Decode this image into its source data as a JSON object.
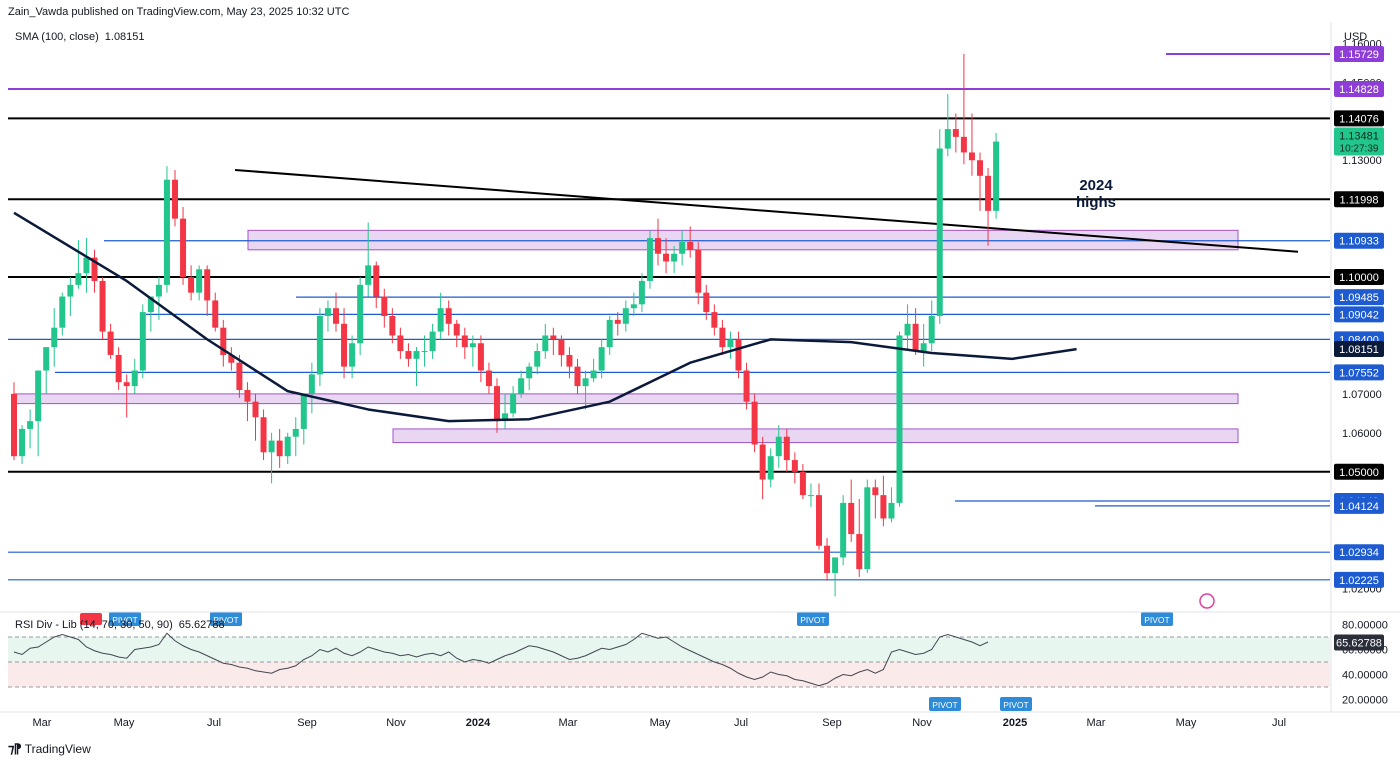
{
  "header": {
    "publisher": "Zain_Vawda published on TradingView.com, May 23, 2025 10:32 UTC",
    "sma_label": "SMA (100, close)",
    "sma_value": "1.08151",
    "currency": "USD"
  },
  "rsi_panel": {
    "label": "RSI Div - Lib (14, 70, 30, 50, 90)",
    "value": "65.62788",
    "pivot_label": "PIVOT",
    "ticks": [
      "80.00000",
      "60.00000",
      "40.00000",
      "20.00000"
    ],
    "badge": "65.62788"
  },
  "annotation": "2024\nhighs",
  "footer": {
    "brand": "TradingView"
  },
  "colors": {
    "bull": "#22c58b",
    "bear": "#f23645",
    "sma": "#0b1a3a",
    "support_black": "#000000",
    "level_blue": "#1e5bd0",
    "level_purple": "#8e3ed6",
    "zone_fill": "#e9d6f3",
    "zone_border": "#a254c8",
    "rsi": "#434651"
  },
  "chart_data": {
    "type": "candlestick",
    "timeframe": "weekly",
    "x_ticks": [
      "Mar",
      "May",
      "Jul",
      "Sep",
      "Nov",
      "2024",
      "Mar",
      "May",
      "Jul",
      "Sep",
      "Nov",
      "2025",
      "Mar",
      "May",
      "Jul"
    ],
    "y_ticks": [
      "1.16000",
      "1.15000",
      "1.13000",
      "1.07000",
      "1.06000",
      "1.02000"
    ],
    "ylim": [
      1.0145,
      1.1655
    ],
    "horizontal_levels": [
      {
        "label": "1.15729",
        "value": 1.15729,
        "kind": "purple"
      },
      {
        "label": "1.14828",
        "value": 1.14828,
        "kind": "purple"
      },
      {
        "label": "1.14076",
        "value": 1.14076,
        "kind": "black"
      },
      {
        "label": "1.11998",
        "value": 1.11998,
        "kind": "black"
      },
      {
        "label": "1.10933",
        "value": 1.10933,
        "kind": "blue"
      },
      {
        "label": "1.10000",
        "value": 1.1,
        "kind": "black"
      },
      {
        "label": "1.09485",
        "value": 1.09485,
        "kind": "blue"
      },
      {
        "label": "1.09042",
        "value": 1.09042,
        "kind": "blue"
      },
      {
        "label": "1.08400",
        "value": 1.084,
        "kind": "blue"
      },
      {
        "label": "1.07552",
        "value": 1.07552,
        "kind": "blue"
      },
      {
        "label": "1.05000",
        "value": 1.05,
        "kind": "black"
      },
      {
        "label": "1.04249",
        "value": 1.04249,
        "kind": "blue"
      },
      {
        "label": "1.04124",
        "value": 1.04124,
        "kind": "blue"
      },
      {
        "label": "1.02934",
        "value": 1.02934,
        "kind": "blue"
      },
      {
        "label": "1.02225",
        "value": 1.02225,
        "kind": "blue"
      }
    ],
    "price_badges": [
      {
        "label": "1.13481",
        "sub": "10:27:39",
        "value": 1.1348,
        "kind": "current"
      },
      {
        "label": "1.08151",
        "value": 1.08151,
        "kind": "sma"
      }
    ],
    "zones": [
      {
        "top": 1.112,
        "bottom": 1.107
      },
      {
        "top": 1.07,
        "bottom": 1.0675
      },
      {
        "top": 1.061,
        "bottom": 1.0575
      }
    ],
    "trendline": {
      "from": {
        "bar": 0,
        "price": 1.1275
      },
      "to": {
        "bar": 1,
        "price": 1.1065
      }
    },
    "candles_ohlc": [
      [
        1.07,
        1.073,
        1.053,
        1.054
      ],
      [
        1.054,
        1.062,
        1.052,
        1.061
      ],
      [
        1.061,
        1.066,
        1.056,
        1.063
      ],
      [
        1.063,
        1.072,
        1.054,
        1.076
      ],
      [
        1.076,
        1.082,
        1.07,
        1.082
      ],
      [
        1.082,
        1.092,
        1.077,
        1.087
      ],
      [
        1.087,
        1.096,
        1.085,
        1.095
      ],
      [
        1.095,
        1.1,
        1.09,
        1.098
      ],
      [
        1.098,
        1.1095,
        1.097,
        1.101
      ],
      [
        1.101,
        1.11,
        1.096,
        1.105
      ],
      [
        1.105,
        1.107,
        1.096,
        1.099
      ],
      [
        1.099,
        1.1,
        1.084,
        1.086
      ],
      [
        1.086,
        1.088,
        1.079,
        1.08
      ],
      [
        1.08,
        1.082,
        1.071,
        1.073
      ],
      [
        1.073,
        1.075,
        1.064,
        1.072
      ],
      [
        1.072,
        1.079,
        1.07,
        1.076
      ],
      [
        1.076,
        1.093,
        1.074,
        1.091
      ],
      [
        1.091,
        1.095,
        1.086,
        1.095
      ],
      [
        1.095,
        1.1,
        1.089,
        1.098
      ],
      [
        1.098,
        1.1285,
        1.096,
        1.125
      ],
      [
        1.125,
        1.1275,
        1.113,
        1.115
      ],
      [
        1.115,
        1.118,
        1.098,
        1.1
      ],
      [
        1.1,
        1.103,
        1.094,
        1.096
      ],
      [
        1.096,
        1.103,
        1.094,
        1.102
      ],
      [
        1.102,
        1.103,
        1.09,
        1.094
      ],
      [
        1.094,
        1.096,
        1.086,
        1.087
      ],
      [
        1.087,
        1.089,
        1.077,
        1.08
      ],
      [
        1.08,
        1.082,
        1.076,
        1.078
      ],
      [
        1.078,
        1.08,
        1.069,
        1.071
      ],
      [
        1.071,
        1.073,
        1.063,
        1.068
      ],
      [
        1.068,
        1.07,
        1.058,
        1.064
      ],
      [
        1.064,
        1.066,
        1.053,
        1.055
      ],
      [
        1.055,
        1.06,
        1.047,
        1.058
      ],
      [
        1.058,
        1.061,
        1.051,
        1.054
      ],
      [
        1.054,
        1.06,
        1.052,
        1.059
      ],
      [
        1.059,
        1.064,
        1.054,
        1.061
      ],
      [
        1.061,
        1.07,
        1.057,
        1.07
      ],
      [
        1.07,
        1.078,
        1.065,
        1.075
      ],
      [
        1.075,
        1.092,
        1.072,
        1.09
      ],
      [
        1.09,
        1.094,
        1.086,
        1.092
      ],
      [
        1.092,
        1.096,
        1.086,
        1.088
      ],
      [
        1.088,
        1.092,
        1.074,
        1.077
      ],
      [
        1.077,
        1.085,
        1.074,
        1.083
      ],
      [
        1.083,
        1.1,
        1.08,
        1.098
      ],
      [
        1.098,
        1.114,
        1.095,
        1.103
      ],
      [
        1.103,
        1.104,
        1.092,
        1.095
      ],
      [
        1.095,
        1.097,
        1.087,
        1.09
      ],
      [
        1.09,
        1.092,
        1.083,
        1.085
      ],
      [
        1.085,
        1.087,
        1.079,
        1.081
      ],
      [
        1.081,
        1.083,
        1.077,
        1.079
      ],
      [
        1.079,
        1.082,
        1.072,
        1.081
      ],
      [
        1.081,
        1.085,
        1.077,
        1.081
      ],
      [
        1.081,
        1.088,
        1.079,
        1.086
      ],
      [
        1.086,
        1.096,
        1.084,
        1.092
      ],
      [
        1.092,
        1.094,
        1.085,
        1.088
      ],
      [
        1.088,
        1.089,
        1.082,
        1.085
      ],
      [
        1.085,
        1.087,
        1.079,
        1.082
      ],
      [
        1.082,
        1.085,
        1.077,
        1.083
      ],
      [
        1.083,
        1.085,
        1.073,
        1.076
      ],
      [
        1.076,
        1.078,
        1.07,
        1.072
      ],
      [
        1.072,
        1.074,
        1.06,
        1.063
      ],
      [
        1.063,
        1.07,
        1.061,
        1.065
      ],
      [
        1.065,
        1.072,
        1.064,
        1.07
      ],
      [
        1.07,
        1.076,
        1.069,
        1.074
      ],
      [
        1.074,
        1.078,
        1.071,
        1.077
      ],
      [
        1.077,
        1.083,
        1.075,
        1.081
      ],
      [
        1.081,
        1.088,
        1.079,
        1.085
      ],
      [
        1.085,
        1.087,
        1.08,
        1.084
      ],
      [
        1.084,
        1.085,
        1.077,
        1.08
      ],
      [
        1.08,
        1.082,
        1.074,
        1.077
      ],
      [
        1.077,
        1.079,
        1.07,
        1.072
      ],
      [
        1.072,
        1.076,
        1.066,
        1.074
      ],
      [
        1.074,
        1.079,
        1.073,
        1.076
      ],
      [
        1.076,
        1.084,
        1.074,
        1.082
      ],
      [
        1.082,
        1.09,
        1.08,
        1.089
      ],
      [
        1.089,
        1.091,
        1.085,
        1.088
      ],
      [
        1.088,
        1.094,
        1.086,
        1.092
      ],
      [
        1.092,
        1.096,
        1.09,
        1.093
      ],
      [
        1.093,
        1.101,
        1.091,
        1.099
      ],
      [
        1.099,
        1.112,
        1.097,
        1.11
      ],
      [
        1.11,
        1.115,
        1.103,
        1.106
      ],
      [
        1.106,
        1.11,
        1.101,
        1.104
      ],
      [
        1.104,
        1.108,
        1.101,
        1.106
      ],
      [
        1.106,
        1.112,
        1.103,
        1.109
      ],
      [
        1.109,
        1.113,
        1.105,
        1.107
      ],
      [
        1.107,
        1.109,
        1.093,
        1.096
      ],
      [
        1.096,
        1.098,
        1.089,
        1.091
      ],
      [
        1.091,
        1.093,
        1.085,
        1.087
      ],
      [
        1.087,
        1.089,
        1.08,
        1.082
      ],
      [
        1.082,
        1.086,
        1.079,
        1.084
      ],
      [
        1.084,
        1.086,
        1.074,
        1.076
      ],
      [
        1.076,
        1.078,
        1.066,
        1.068
      ],
      [
        1.068,
        1.07,
        1.055,
        1.057
      ],
      [
        1.057,
        1.059,
        1.043,
        1.048
      ],
      [
        1.048,
        1.056,
        1.046,
        1.054
      ],
      [
        1.054,
        1.062,
        1.051,
        1.059
      ],
      [
        1.059,
        1.061,
        1.05,
        1.053
      ],
      [
        1.053,
        1.055,
        1.047,
        1.05
      ],
      [
        1.05,
        1.052,
        1.043,
        1.044
      ],
      [
        1.044,
        1.047,
        1.041,
        1.044
      ],
      [
        1.044,
        1.047,
        1.03,
        1.031
      ],
      [
        1.031,
        1.033,
        1.022,
        1.024
      ],
      [
        1.024,
        1.028,
        1.018,
        1.028
      ],
      [
        1.028,
        1.044,
        1.026,
        1.042
      ],
      [
        1.042,
        1.048,
        1.032,
        1.034
      ],
      [
        1.034,
        1.043,
        1.023,
        1.025
      ],
      [
        1.025,
        1.048,
        1.024,
        1.046
      ],
      [
        1.046,
        1.048,
        1.038,
        1.044
      ],
      [
        1.044,
        1.049,
        1.036,
        1.038
      ],
      [
        1.038,
        1.046,
        1.037,
        1.042
      ],
      [
        1.042,
        1.086,
        1.041,
        1.085
      ],
      [
        1.085,
        1.093,
        1.081,
        1.088
      ],
      [
        1.088,
        1.092,
        1.08,
        1.081
      ],
      [
        1.081,
        1.088,
        1.077,
        1.083
      ],
      [
        1.083,
        1.094,
        1.081,
        1.09
      ],
      [
        1.09,
        1.138,
        1.088,
        1.133
      ],
      [
        1.133,
        1.147,
        1.131,
        1.138
      ],
      [
        1.138,
        1.142,
        1.132,
        1.136
      ],
      [
        1.136,
        1.1573,
        1.129,
        1.132
      ],
      [
        1.132,
        1.142,
        1.126,
        1.13
      ],
      [
        1.13,
        1.132,
        1.117,
        1.126
      ],
      [
        1.126,
        1.128,
        1.108,
        1.117
      ],
      [
        1.117,
        1.137,
        1.115,
        1.1348
      ]
    ]
  }
}
